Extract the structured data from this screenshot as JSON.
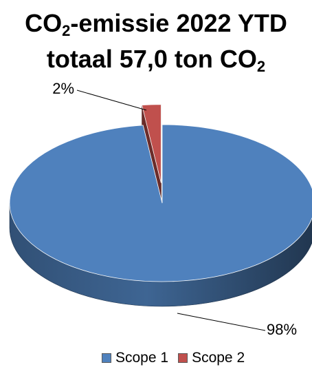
{
  "chart_data": {
    "type": "pie",
    "title_line1_prefix": "CO",
    "title_line1_sub": "2",
    "title_line1_suffix": "-emissie 2022 YTD",
    "title_line2_prefix": "totaal 57,0 ton CO",
    "title_line2_sub": "2",
    "categories": [
      "Scope 1",
      "Scope 2"
    ],
    "values": [
      98,
      2
    ],
    "data_labels": [
      "98%",
      "2%"
    ],
    "colors": [
      "#4f81bd",
      "#c0504d"
    ],
    "legend_position": "bottom",
    "style": "3d-exploded"
  }
}
